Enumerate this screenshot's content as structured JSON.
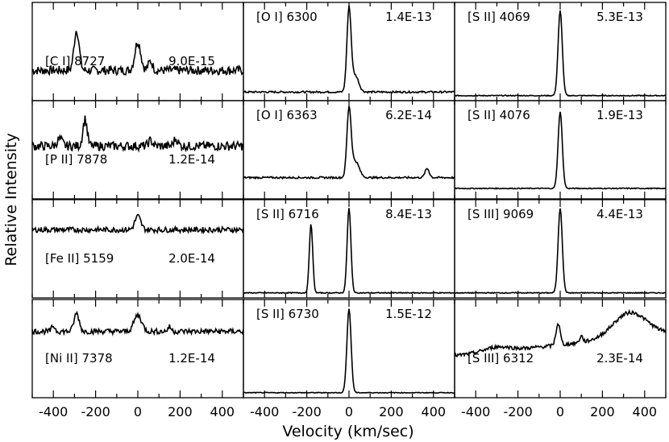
{
  "figure": {
    "ylabel": "Relative Intensity",
    "xlabel": "Velocity (km/sec)"
  },
  "chart_data": [
    {
      "type": "line",
      "column": 0,
      "row": 0,
      "line": "[C I] 8727",
      "flux": "9.0E-15",
      "xlim": [
        -500,
        500
      ],
      "baseline": 0.3,
      "peaks": [
        {
          "v": -290,
          "h": 0.45,
          "w": 12
        },
        {
          "v": 0,
          "h": 0.32,
          "w": 14
        },
        {
          "v": 60,
          "h": 0.1,
          "w": 10
        }
      ],
      "noise": 0.05
    },
    {
      "type": "line",
      "column": 1,
      "row": 0,
      "line": "[O I] 6300",
      "flux": "1.4E-13",
      "xlim": [
        -500,
        500
      ],
      "baseline": 0.06,
      "peaks": [
        {
          "v": 0,
          "h": 0.92,
          "w": 10
        },
        {
          "v": 30,
          "h": 0.18,
          "w": 16
        }
      ],
      "noise": 0.01
    },
    {
      "type": "line",
      "column": 2,
      "row": 0,
      "line": "[S II] 4069",
      "flux": "5.3E-13",
      "xlim": [
        -500,
        500
      ],
      "baseline": 0.02,
      "peaks": [
        {
          "v": 0,
          "h": 0.94,
          "w": 10
        }
      ],
      "noise": 0.005
    },
    {
      "type": "line",
      "column": 0,
      "row": 1,
      "line": "[P II] 7878",
      "flux": "1.2E-14",
      "xlim": [
        -500,
        500
      ],
      "baseline": 0.55,
      "peaks": [
        {
          "v": -250,
          "h": 0.3,
          "w": 10
        },
        {
          "v": -370,
          "h": 0.08,
          "w": 12
        },
        {
          "v": 180,
          "h": 0.08,
          "w": 10
        },
        {
          "v": 60,
          "h": 0.06,
          "w": 10
        }
      ],
      "noise": 0.05
    },
    {
      "type": "line",
      "column": 1,
      "row": 1,
      "line": "[O I] 6363",
      "flux": "6.2E-14",
      "xlim": [
        -500,
        500
      ],
      "baseline": 0.2,
      "peaks": [
        {
          "v": 0,
          "h": 0.75,
          "w": 10
        },
        {
          "v": 30,
          "h": 0.18,
          "w": 18
        },
        {
          "v": 370,
          "h": 0.1,
          "w": 10
        }
      ],
      "noise": 0.01
    },
    {
      "type": "line",
      "column": 2,
      "row": 1,
      "line": "[S II] 4076",
      "flux": "1.9E-13",
      "xlim": [
        -500,
        500
      ],
      "baseline": 0.08,
      "peaks": [
        {
          "v": 0,
          "h": 0.85,
          "w": 10
        }
      ],
      "noise": 0.005
    },
    {
      "type": "line",
      "column": 0,
      "row": 2,
      "line": "[Fe II] 5159",
      "flux": "2.0E-14",
      "xlim": [
        -500,
        500
      ],
      "baseline": 0.72,
      "peaks": [
        {
          "v": 0,
          "h": 0.15,
          "w": 14
        }
      ],
      "noise": 0.03
    },
    {
      "type": "line",
      "column": 1,
      "row": 2,
      "line": "[S II] 6716",
      "flux": "8.4E-13",
      "xlim": [
        -500,
        500
      ],
      "baseline": 0.02,
      "peaks": [
        {
          "v": -180,
          "h": 0.76,
          "w": 8
        },
        {
          "v": 0,
          "h": 0.94,
          "w": 9
        }
      ],
      "noise": 0.005
    },
    {
      "type": "line",
      "column": 2,
      "row": 2,
      "line": "[S III] 9069",
      "flux": "4.4E-13",
      "xlim": [
        -500,
        500
      ],
      "baseline": 0.02,
      "peaks": [
        {
          "v": 0,
          "h": 0.94,
          "w": 10
        }
      ],
      "noise": 0.005
    },
    {
      "type": "line",
      "column": 0,
      "row": 3,
      "line": "[Ni II] 7378",
      "flux": "1.2E-14",
      "xlim": [
        -500,
        500
      ],
      "baseline": 0.7,
      "peaks": [
        {
          "v": -290,
          "h": 0.2,
          "w": 12
        },
        {
          "v": 0,
          "h": 0.18,
          "w": 18
        },
        {
          "v": -400,
          "h": 0.06,
          "w": 8
        },
        {
          "v": 150,
          "h": 0.05,
          "w": 8
        }
      ],
      "noise": 0.03
    },
    {
      "type": "line",
      "column": 1,
      "row": 3,
      "line": "[S II] 6730",
      "flux": "1.5E-12",
      "xlim": [
        -500,
        500
      ],
      "baseline": 0.02,
      "peaks": [
        {
          "v": 0,
          "h": 0.93,
          "w": 10
        }
      ],
      "noise": 0.004
    },
    {
      "type": "line",
      "column": 2,
      "row": 3,
      "line": "[S III] 6312",
      "flux": "2.3E-14",
      "xlim": [
        -500,
        500
      ],
      "baseline": 0.55,
      "peaks": [
        {
          "v": -10,
          "h": 0.24,
          "w": 10
        },
        {
          "v": 100,
          "h": 0.07,
          "w": 8
        },
        {
          "v": -300,
          "h": 0.05,
          "w": 60
        },
        {
          "v": 330,
          "h": 0.28,
          "w": 80
        }
      ],
      "slope": 0.12,
      "noise": 0.02
    }
  ],
  "x_ticks": [
    -400,
    -200,
    0,
    200,
    400
  ]
}
